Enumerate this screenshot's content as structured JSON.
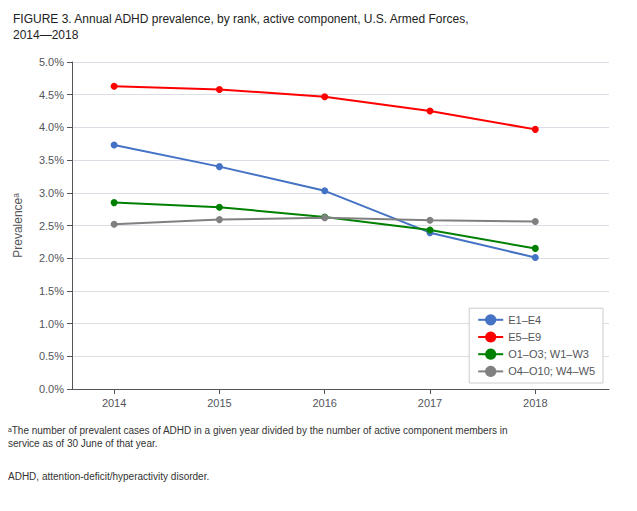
{
  "chart_data": {
    "type": "line",
    "title": "FIGURE 3. Annual ADHD prevalence, by rank, active component, U.S. Armed Forces,\n2014—2018",
    "x": [
      2014,
      2015,
      2016,
      2017,
      2018
    ],
    "series": [
      {
        "name": "E1–E4",
        "color": "#4472C4",
        "values": [
          0.0373,
          0.034,
          0.0303,
          0.0239,
          0.0201
        ]
      },
      {
        "name": "E5–E9",
        "color": "#FF0000",
        "values": [
          0.0463,
          0.0458,
          0.0447,
          0.0425,
          0.0397
        ]
      },
      {
        "name": "O1–O3; W1–W3",
        "color": "#008000",
        "values": [
          0.0285,
          0.0278,
          0.0263,
          0.0243,
          0.0215
        ]
      },
      {
        "name": "O4–O10; W4–W5",
        "color": "#808080",
        "values": [
          0.0252,
          0.0259,
          0.0262,
          0.0258,
          0.0256
        ]
      }
    ],
    "xlim": [
      2013.6,
      2018.7
    ],
    "xticks": [
      2014,
      2015,
      2016,
      2017,
      2018
    ],
    "ylabel": "Prevalenceᵃ",
    "ylim": [
      0.0,
      0.05
    ],
    "yticks": [
      {
        "value": 0.0,
        "label": "0.0%"
      },
      {
        "value": 0.005,
        "label": "0.5%"
      },
      {
        "value": 0.01,
        "label": "1.0%"
      },
      {
        "value": 0.015,
        "label": "1.5%"
      },
      {
        "value": 0.02,
        "label": "2.0%"
      },
      {
        "value": 0.025,
        "label": "2.5%"
      },
      {
        "value": 0.03,
        "label": "3.0%"
      },
      {
        "value": 0.035,
        "label": "3.5%"
      },
      {
        "value": 0.04,
        "label": "4.0%"
      },
      {
        "value": 0.045,
        "label": "4.5%"
      },
      {
        "value": 0.05,
        "label": "5.0%"
      }
    ],
    "grid": true,
    "legend": "lower right",
    "marker": "circle",
    "annotations": [
      "ᵃThe number of prevalent cases of ADHD in a given year divided by the number of active component members in\nservice as of 30 June of that year.",
      "ADHD, attention-deficit/hyperactivity disorder."
    ]
  }
}
